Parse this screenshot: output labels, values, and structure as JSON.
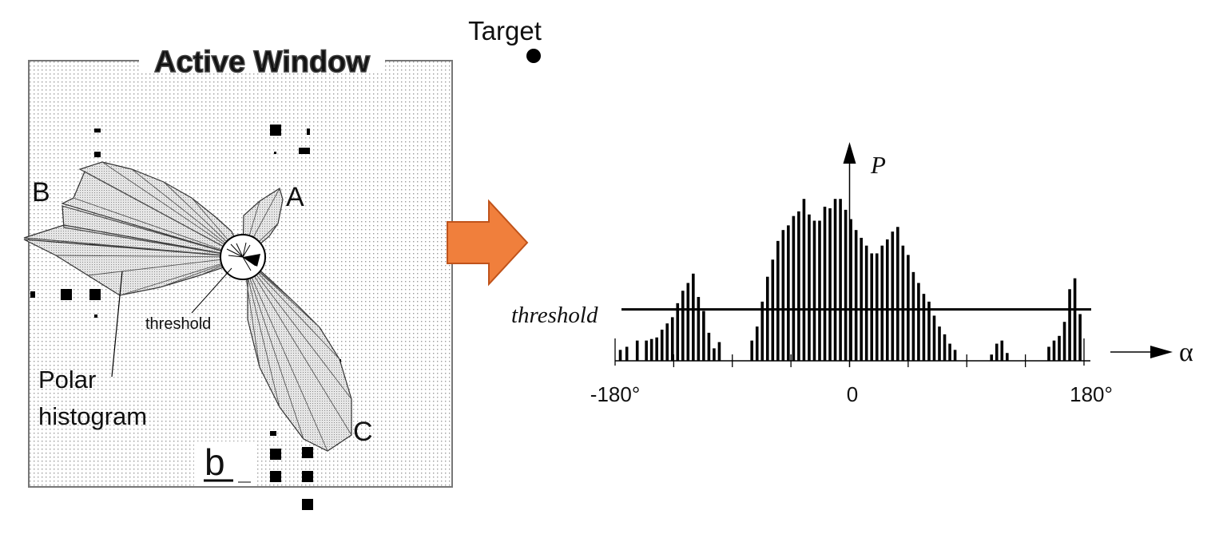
{
  "active_window": {
    "title": "Active Window",
    "sector_labels": [
      "A",
      "B",
      "C"
    ],
    "threshold_label": "threshold",
    "polar_label_line1": "Polar",
    "polar_label_line2": "histogram",
    "panel_tag": "b"
  },
  "target": {
    "label": "Target"
  },
  "arrow": {
    "color": "#f07f3c",
    "stroke": "#c0531a"
  },
  "chart_data": {
    "type": "bar",
    "x_axis_symbol": "α",
    "y_axis_symbol": "P",
    "threshold_label": "threshold",
    "tick_labels": [
      "-180°",
      "0",
      "180°"
    ],
    "xlim": [
      -180,
      180
    ],
    "ylim": [
      0,
      11
    ],
    "threshold_value": 3.3,
    "x": [
      -176,
      -171,
      -163,
      -156,
      -152,
      -148,
      -144,
      -140,
      -136,
      -132,
      -128,
      -124,
      -120,
      -116,
      -112,
      -108,
      -104,
      -100,
      -96,
      -92,
      -88,
      -83,
      -79,
      -75,
      -71,
      -67,
      -63,
      -59,
      -55,
      -51,
      -47,
      -43,
      -39,
      -35,
      -31,
      -27,
      -23,
      -19,
      -15,
      -11,
      -7,
      -3,
      1,
      5,
      9,
      13,
      17,
      21,
      25,
      29,
      33,
      37,
      41,
      45,
      49,
      53,
      57,
      61,
      65,
      69,
      73,
      77,
      81,
      85,
      89,
      93,
      97,
      101,
      105,
      109,
      113,
      117,
      121,
      125,
      129,
      133,
      137,
      141,
      145,
      149,
      153,
      157,
      161,
      165,
      169,
      173,
      177
    ],
    "values": [
      0.7,
      0.9,
      1.3,
      1.3,
      1.4,
      1.5,
      2.0,
      2.4,
      2.8,
      3.7,
      4.5,
      5.0,
      5.6,
      4.1,
      3.2,
      1.8,
      0.8,
      1.2,
      0,
      0,
      0,
      0,
      0,
      1.3,
      2.2,
      3.8,
      5.4,
      6.5,
      7.7,
      8.4,
      8.7,
      9.3,
      9.6,
      10.4,
      9.4,
      9.0,
      9.0,
      9.9,
      9.8,
      10.4,
      10.4,
      9.7,
      9.1,
      8.4,
      7.9,
      7.4,
      6.9,
      6.9,
      7.4,
      7.8,
      8.3,
      8.6,
      7.4,
      6.8,
      5.7,
      5.0,
      4.3,
      3.8,
      2.9,
      2.2,
      1.7,
      1.1,
      0.7,
      0,
      0,
      0,
      0,
      0,
      0,
      0.4,
      1.1,
      1.3,
      0.5,
      0,
      0,
      0,
      0,
      0,
      0,
      0,
      0.9,
      1.3,
      1.6,
      2.5,
      4.6,
      5.3,
      3.0
    ]
  }
}
